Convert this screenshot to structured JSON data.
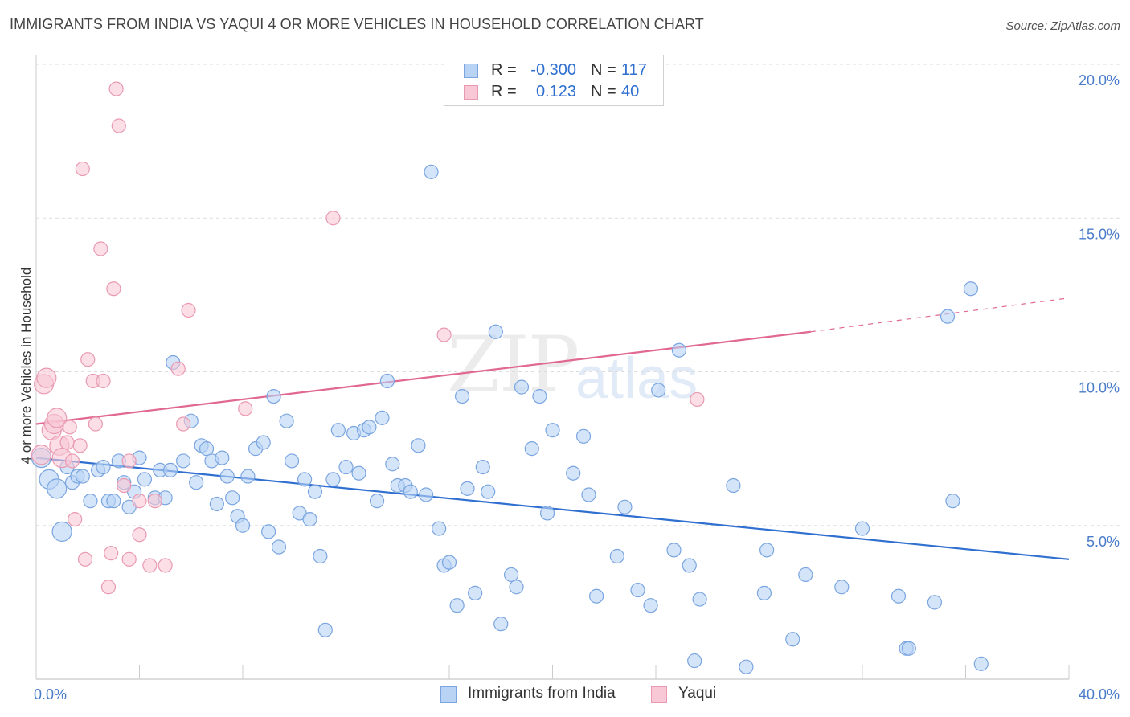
{
  "header": {
    "title": "IMMIGRANTS FROM INDIA VS YAQUI 4 OR MORE VEHICLES IN HOUSEHOLD CORRELATION CHART",
    "source": "Source: ZipAtlas.com"
  },
  "watermark": {
    "zip": "ZIP",
    "atlas": "atlas"
  },
  "legend": {
    "rows": [
      {
        "r_label": "R =",
        "r_value": "-0.300",
        "n_label": "N =",
        "n_value": "117"
      },
      {
        "r_label": "R =",
        "r_value": "0.123",
        "n_label": "N =",
        "n_value": "40"
      }
    ]
  },
  "bottom_legend": {
    "items": [
      {
        "label": "Immigrants from India"
      },
      {
        "label": "Yaqui"
      }
    ]
  },
  "colors": {
    "india_fill": "#b9d3f5",
    "india_stroke": "#7aa5e0",
    "india_line": "#2f6fd0",
    "yaqui_fill": "#f9c8d6",
    "yaqui_stroke": "#e99ab2",
    "yaqui_line": "#e06892",
    "grid": "#dddddd",
    "tick_text": "#4a7cc9"
  },
  "chart_data": {
    "type": "scatter",
    "title": "IMMIGRANTS FROM INDIA VS YAQUI 4 OR MORE VEHICLES IN HOUSEHOLD CORRELATION CHART",
    "xlabel": "",
    "ylabel": "4 or more Vehicles in Household",
    "xlim": [
      0,
      40
    ],
    "ylim": [
      0,
      20
    ],
    "x_tick_labels": [
      "0.0%",
      "40.0%"
    ],
    "y_ticks": [
      5,
      10,
      15,
      20
    ],
    "y_tick_labels": [
      "5.0%",
      "10.0%",
      "15.0%",
      "20.0%"
    ],
    "grid": true,
    "series": [
      {
        "name": "Immigrants from India",
        "points": [
          [
            0.2,
            7.2
          ],
          [
            0.5,
            6.5
          ],
          [
            0.8,
            6.2
          ],
          [
            1.0,
            4.8
          ],
          [
            1.2,
            6.9
          ],
          [
            1.4,
            6.4
          ],
          [
            1.6,
            6.6
          ],
          [
            1.8,
            6.6
          ],
          [
            2.1,
            5.8
          ],
          [
            2.4,
            6.8
          ],
          [
            2.6,
            6.9
          ],
          [
            2.8,
            5.8
          ],
          [
            3.0,
            5.8
          ],
          [
            3.2,
            7.1
          ],
          [
            3.4,
            6.4
          ],
          [
            3.6,
            5.6
          ],
          [
            3.8,
            6.1
          ],
          [
            4.0,
            7.2
          ],
          [
            4.2,
            6.5
          ],
          [
            4.6,
            5.9
          ],
          [
            4.8,
            6.8
          ],
          [
            5.0,
            5.9
          ],
          [
            5.2,
            6.8
          ],
          [
            5.3,
            10.3
          ],
          [
            5.7,
            7.1
          ],
          [
            6.0,
            8.4
          ],
          [
            6.2,
            6.4
          ],
          [
            6.4,
            7.6
          ],
          [
            6.6,
            7.5
          ],
          [
            6.8,
            7.1
          ],
          [
            7.0,
            5.7
          ],
          [
            7.2,
            7.2
          ],
          [
            7.4,
            6.6
          ],
          [
            7.6,
            5.9
          ],
          [
            7.8,
            5.3
          ],
          [
            8.0,
            5.0
          ],
          [
            8.2,
            6.6
          ],
          [
            8.5,
            7.5
          ],
          [
            8.8,
            7.7
          ],
          [
            9.0,
            4.8
          ],
          [
            9.2,
            9.2
          ],
          [
            9.4,
            4.3
          ],
          [
            9.7,
            8.4
          ],
          [
            9.9,
            7.1
          ],
          [
            10.2,
            5.4
          ],
          [
            10.4,
            6.5
          ],
          [
            10.6,
            5.2
          ],
          [
            10.8,
            6.1
          ],
          [
            11.0,
            4.0
          ],
          [
            11.2,
            1.6
          ],
          [
            11.5,
            6.5
          ],
          [
            11.7,
            8.1
          ],
          [
            12.0,
            6.9
          ],
          [
            12.3,
            8.0
          ],
          [
            12.5,
            6.7
          ],
          [
            12.7,
            8.1
          ],
          [
            12.9,
            8.2
          ],
          [
            13.2,
            5.8
          ],
          [
            13.4,
            8.5
          ],
          [
            13.6,
            9.7
          ],
          [
            13.8,
            7.0
          ],
          [
            14.0,
            6.3
          ],
          [
            14.3,
            6.3
          ],
          [
            14.5,
            6.1
          ],
          [
            14.8,
            7.6
          ],
          [
            15.1,
            6.0
          ],
          [
            15.3,
            16.5
          ],
          [
            15.6,
            4.9
          ],
          [
            15.8,
            3.7
          ],
          [
            16.0,
            3.8
          ],
          [
            16.3,
            2.4
          ],
          [
            16.5,
            9.2
          ],
          [
            16.7,
            6.2
          ],
          [
            17.0,
            2.8
          ],
          [
            17.3,
            6.9
          ],
          [
            17.5,
            6.1
          ],
          [
            17.8,
            11.3
          ],
          [
            18.0,
            1.8
          ],
          [
            18.4,
            3.4
          ],
          [
            18.6,
            3.0
          ],
          [
            18.8,
            9.5
          ],
          [
            19.2,
            7.5
          ],
          [
            19.5,
            9.2
          ],
          [
            19.8,
            5.4
          ],
          [
            20.0,
            8.1
          ],
          [
            20.8,
            6.7
          ],
          [
            21.2,
            7.9
          ],
          [
            21.4,
            6.0
          ],
          [
            21.7,
            2.7
          ],
          [
            22.5,
            4.0
          ],
          [
            22.8,
            5.6
          ],
          [
            23.3,
            2.9
          ],
          [
            23.8,
            2.4
          ],
          [
            24.1,
            9.4
          ],
          [
            24.7,
            4.2
          ],
          [
            24.9,
            10.7
          ],
          [
            25.3,
            3.7
          ],
          [
            25.5,
            0.6
          ],
          [
            25.7,
            2.6
          ],
          [
            27.0,
            6.3
          ],
          [
            27.5,
            0.4
          ],
          [
            28.2,
            2.8
          ],
          [
            28.3,
            4.2
          ],
          [
            29.3,
            1.3
          ],
          [
            29.8,
            3.4
          ],
          [
            31.2,
            3.0
          ],
          [
            32.0,
            4.9
          ],
          [
            33.4,
            2.7
          ],
          [
            33.7,
            1.0
          ],
          [
            33.8,
            1.0
          ],
          [
            34.8,
            2.5
          ],
          [
            35.3,
            11.8
          ],
          [
            35.5,
            5.8
          ],
          [
            36.2,
            12.7
          ],
          [
            36.6,
            0.5
          ]
        ],
        "trend": {
          "x": [
            0,
            40
          ],
          "y": [
            7.2,
            3.9
          ]
        }
      },
      {
        "name": "Yaqui",
        "points": [
          [
            0.2,
            7.3
          ],
          [
            0.3,
            9.6
          ],
          [
            0.4,
            9.8
          ],
          [
            0.6,
            8.1
          ],
          [
            0.7,
            8.3
          ],
          [
            0.8,
            8.5
          ],
          [
            0.9,
            7.6
          ],
          [
            1.0,
            7.2
          ],
          [
            1.2,
            7.7
          ],
          [
            1.3,
            8.2
          ],
          [
            1.4,
            7.1
          ],
          [
            1.5,
            5.2
          ],
          [
            1.7,
            7.6
          ],
          [
            1.8,
            16.6
          ],
          [
            1.9,
            3.9
          ],
          [
            2.0,
            10.4
          ],
          [
            2.2,
            9.7
          ],
          [
            2.3,
            8.3
          ],
          [
            2.5,
            14.0
          ],
          [
            2.6,
            9.7
          ],
          [
            2.8,
            3.0
          ],
          [
            2.9,
            4.1
          ],
          [
            3.0,
            12.7
          ],
          [
            3.1,
            19.2
          ],
          [
            3.2,
            18.0
          ],
          [
            3.4,
            6.3
          ],
          [
            3.6,
            7.1
          ],
          [
            3.6,
            3.9
          ],
          [
            4.0,
            5.8
          ],
          [
            4.0,
            4.7
          ],
          [
            4.4,
            3.7
          ],
          [
            4.6,
            5.8
          ],
          [
            5.0,
            3.7
          ],
          [
            5.5,
            10.1
          ],
          [
            5.7,
            8.3
          ],
          [
            5.9,
            12.0
          ],
          [
            8.1,
            8.8
          ],
          [
            11.5,
            15.0
          ],
          [
            15.8,
            11.2
          ],
          [
            25.6,
            9.1
          ]
        ],
        "trend": {
          "x": [
            0,
            30.0
          ],
          "y": [
            8.3,
            11.3
          ]
        },
        "trend_dashed": {
          "x": [
            30.0,
            40
          ],
          "y": [
            11.3,
            12.4
          ]
        }
      }
    ]
  }
}
